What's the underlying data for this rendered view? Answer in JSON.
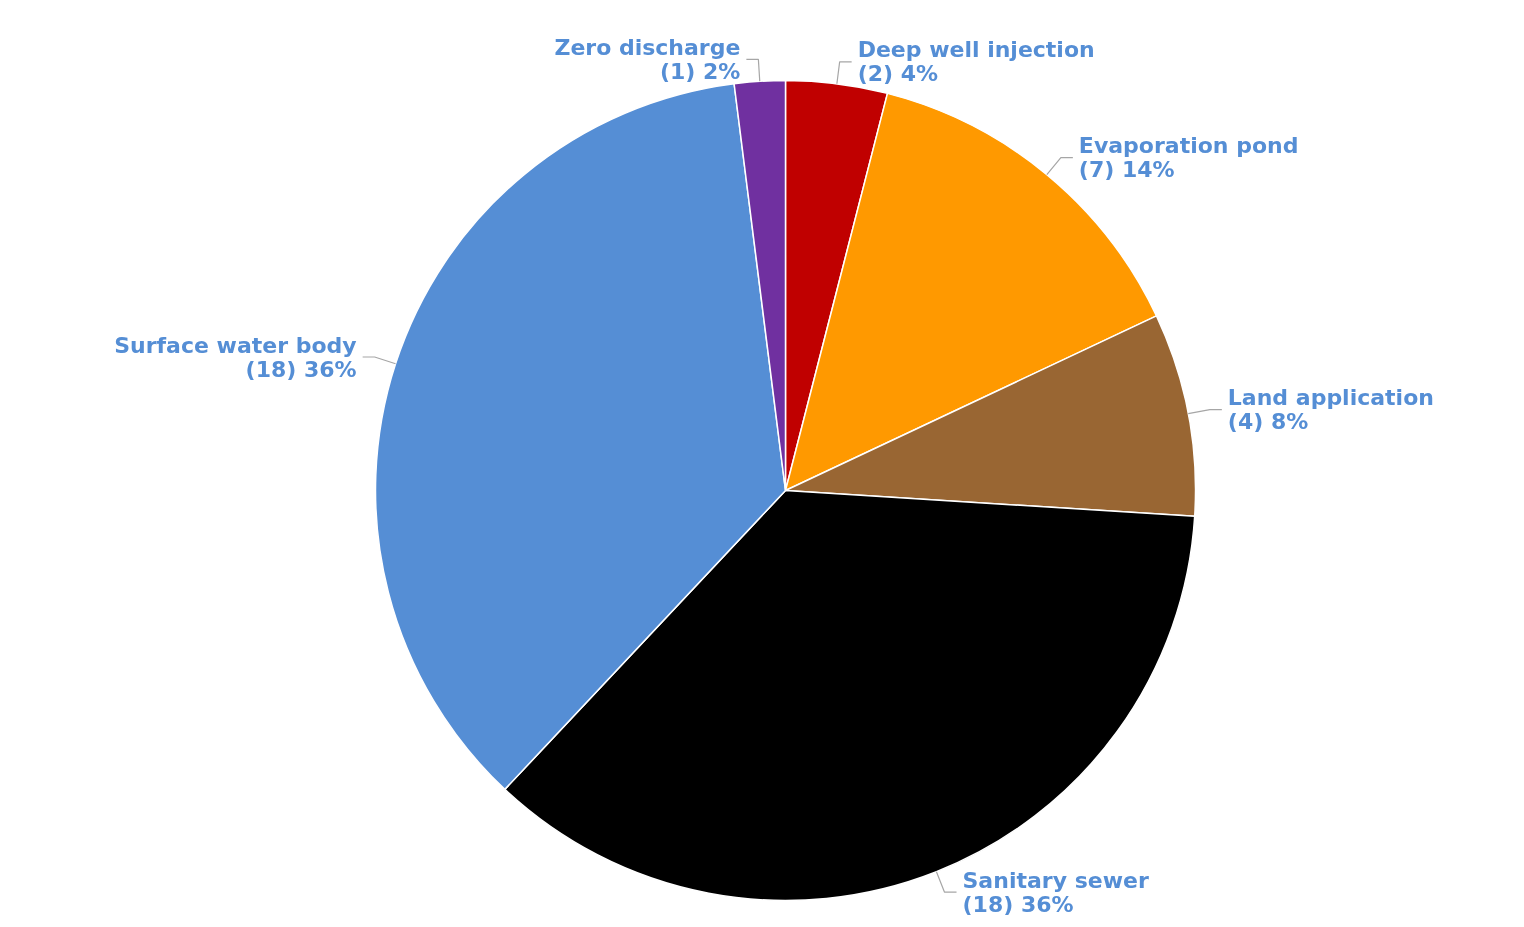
{
  "chart_data": {
    "type": "pie",
    "categories": [
      "Deep well injection",
      "Evaporation pond",
      "Land application",
      "Sanitary sewer",
      "Surface water body",
      "Zero discharge"
    ],
    "values": [
      2,
      7,
      4,
      18,
      18,
      1
    ],
    "value_labels": [
      "(2) 4%",
      "(7) 14%",
      "(4) 8%",
      "(18) 36%",
      "(18) 36%",
      "(1) 2%"
    ],
    "colors": [
      "#c00000",
      "#ff9900",
      "#996633",
      "#000000",
      "#558ed5",
      "#7030a0"
    ]
  }
}
